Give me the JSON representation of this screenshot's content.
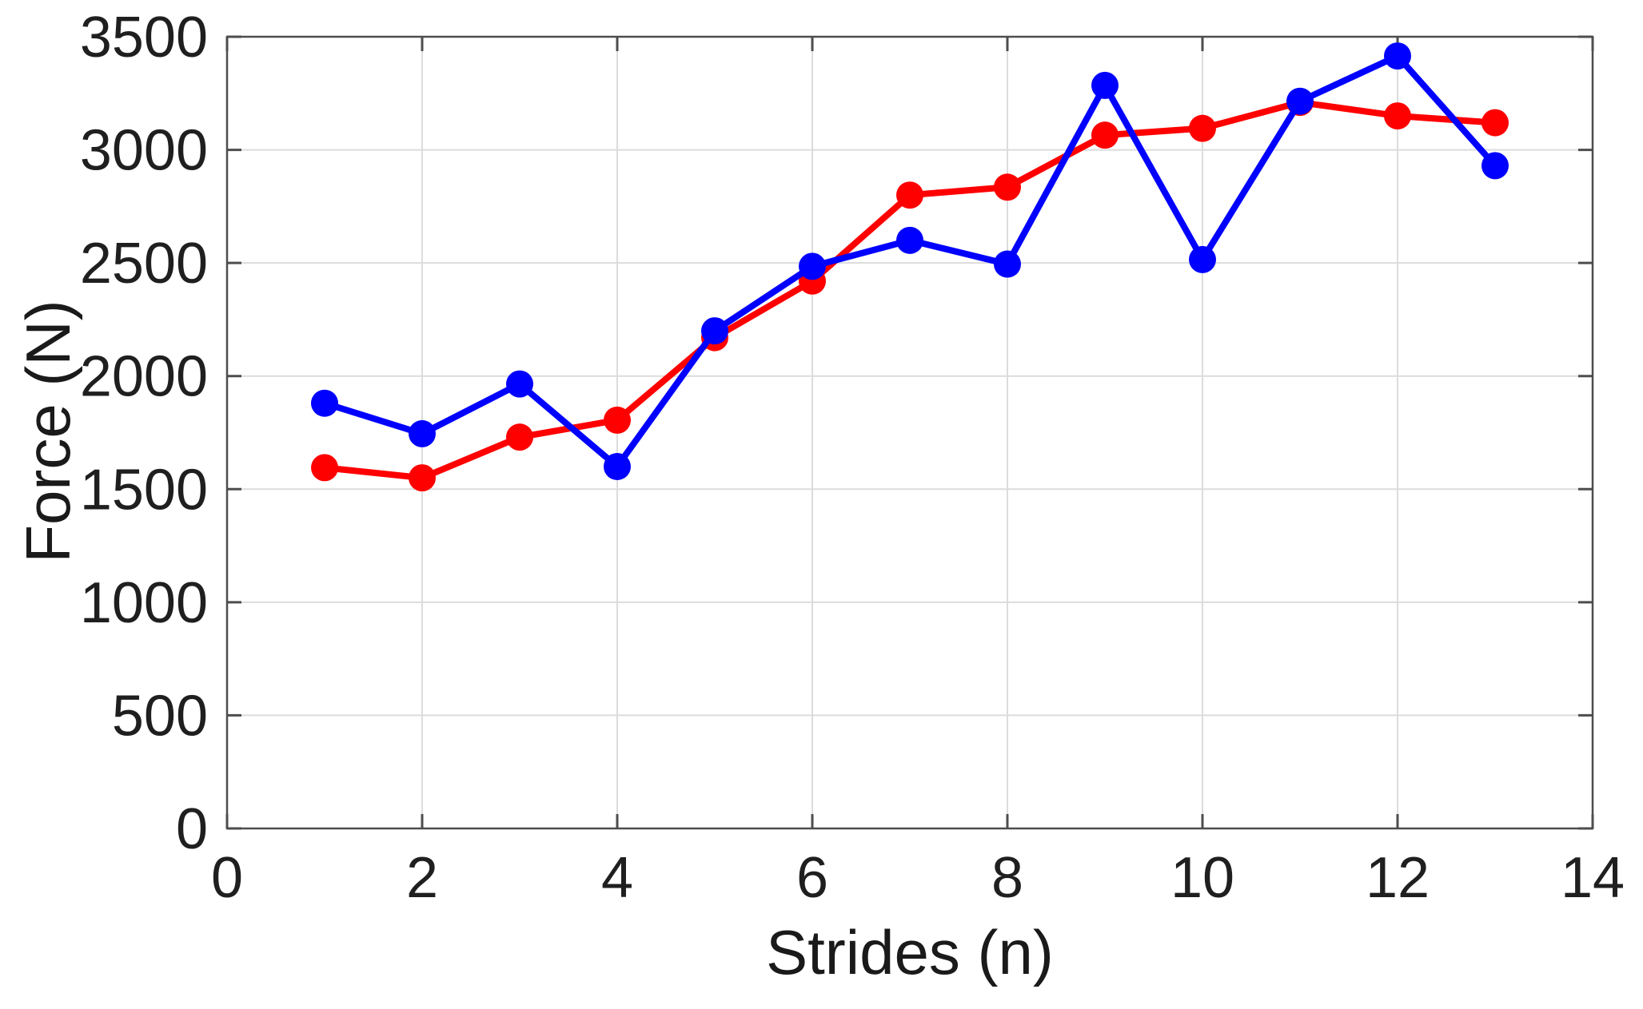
{
  "chart_data": {
    "type": "line",
    "title": "",
    "xlabel": "Strides (n)",
    "ylabel": "Force (N)",
    "xlim": [
      0,
      14
    ],
    "ylim": [
      0,
      3500
    ],
    "x_ticks": [
      0,
      2,
      4,
      6,
      8,
      10,
      12,
      14
    ],
    "y_ticks": [
      0,
      500,
      1000,
      1500,
      2000,
      2500,
      3000,
      3500
    ],
    "grid": true,
    "legend_position": "none",
    "marker": "circle",
    "x": [
      1,
      2,
      3,
      4,
      5,
      6,
      7,
      8,
      9,
      10,
      11,
      12,
      13
    ],
    "series": [
      {
        "name": "Red",
        "color": "#FF0000",
        "values": [
          1595,
          1550,
          1730,
          1805,
          2170,
          2420,
          2800,
          2835,
          3065,
          3095,
          3210,
          3150,
          3120
        ]
      },
      {
        "name": "Blue",
        "color": "#0000FF",
        "values": [
          1880,
          1745,
          1965,
          1600,
          2200,
          2485,
          2600,
          2495,
          3285,
          2515,
          3215,
          3415,
          2930
        ]
      }
    ]
  },
  "styles": {
    "axis_color": "#4d4d4d",
    "grid_color": "#dcdcdc",
    "tick_label_color": "#1f1f1f",
    "background_color": "#ffffff"
  }
}
